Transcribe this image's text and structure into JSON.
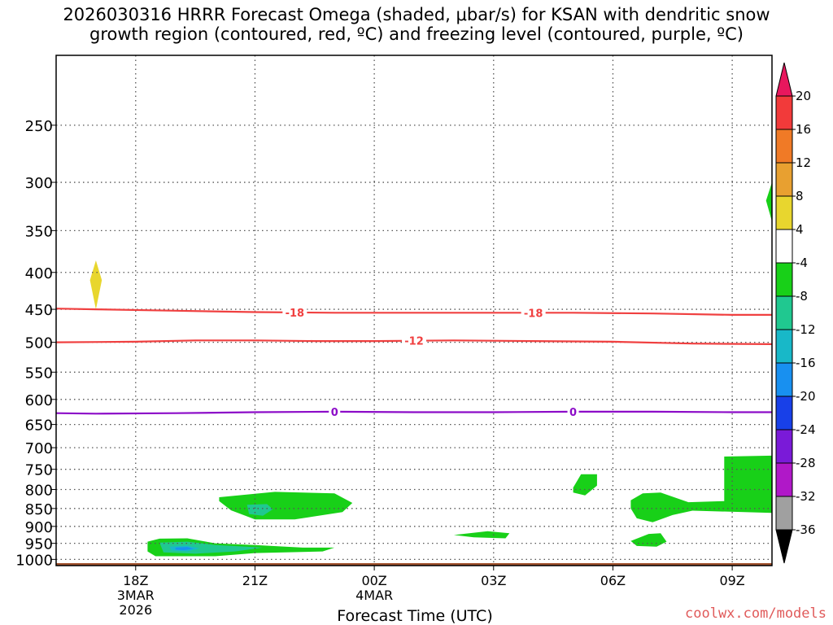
{
  "title_line1": "2026030316 HRRR Forecast Omega (shaded, μbar/s) for KSAN with dendritic snow",
  "title_line2": "growth region (contoured, red, ºC) and freezing level (contoured, purple, ºC)",
  "watermark": "coolwx.com/models",
  "chart_data": {
    "type": "heatmap",
    "xlabel": "Forecast Time (UTC)",
    "ylabel": "",
    "y_scale": "log",
    "ylim": [
      1020,
      200
    ],
    "xlim": [
      "2026-03-03 16Z",
      "2026-03-04 10Z"
    ],
    "y_ticks": [
      250,
      300,
      350,
      400,
      450,
      500,
      550,
      600,
      650,
      700,
      750,
      800,
      850,
      900,
      950,
      1000
    ],
    "x_ticks": [
      {
        "label": "18Z",
        "sub1": "3MAR",
        "sub2": "2026",
        "hour": 18
      },
      {
        "label": "21Z",
        "sub1": "",
        "sub2": "",
        "hour": 21
      },
      {
        "label": "00Z",
        "sub1": "4MAR",
        "sub2": "",
        "hour": 24
      },
      {
        "label": "03Z",
        "sub1": "",
        "sub2": "",
        "hour": 27
      },
      {
        "label": "06Z",
        "sub1": "",
        "sub2": "",
        "hour": 30
      },
      {
        "label": "09Z",
        "sub1": "",
        "sub2": "",
        "hour": 33
      }
    ],
    "grid": true,
    "colorbar": {
      "labels": [
        "20",
        "16",
        "12",
        "8",
        "4",
        "-4",
        "-8",
        "-12",
        "-16",
        "-20",
        "-24",
        "-28",
        "-32",
        "-36"
      ],
      "colors": [
        "#e8175d",
        "#f23a3a",
        "#f07a26",
        "#e8a030",
        "#e8d62e",
        "#ffffff",
        "#18d018",
        "#20c890",
        "#18b8c8",
        "#1890f0",
        "#1840e8",
        "#7a1ad8",
        "#b018c8",
        "#a0a0a0",
        "#000000"
      ]
    },
    "contours": [
      {
        "name": "-18",
        "color": "#f04040",
        "points": [
          [
            16.0,
            449
          ],
          [
            17.0,
            450
          ],
          [
            19.0,
            452
          ],
          [
            21.0,
            454
          ],
          [
            23.0,
            455
          ],
          [
            25.0,
            455
          ],
          [
            27.0,
            455
          ],
          [
            29.0,
            455
          ],
          [
            31.0,
            456
          ],
          [
            33.0,
            458
          ],
          [
            34.0,
            458
          ]
        ],
        "labels": [
          22.0,
          28.0
        ]
      },
      {
        "name": "-12",
        "color": "#f04040",
        "points": [
          [
            16.0,
            500
          ],
          [
            18.0,
            499
          ],
          [
            19.5,
            497
          ],
          [
            21.0,
            497
          ],
          [
            22.5,
            498
          ],
          [
            24.0,
            498
          ],
          [
            26.0,
            497
          ],
          [
            28.0,
            498
          ],
          [
            30.0,
            499
          ],
          [
            32.0,
            502
          ],
          [
            34.0,
            503
          ]
        ],
        "labels": [
          25.0
        ]
      },
      {
        "name": "0",
        "color": "#8c0cc8",
        "points": [
          [
            16.0,
            627
          ],
          [
            17.0,
            628
          ],
          [
            19.0,
            627
          ],
          [
            21.0,
            625
          ],
          [
            23.0,
            624
          ],
          [
            25.0,
            625
          ],
          [
            27.0,
            625
          ],
          [
            29.0,
            624
          ],
          [
            31.0,
            624
          ],
          [
            33.0,
            625
          ],
          [
            34.0,
            625
          ]
        ],
        "labels": [
          23.0,
          29.0
        ]
      }
    ],
    "regions": [
      {
        "color": "#e8d62e",
        "points": [
          [
            17.0,
            385
          ],
          [
            17.15,
            410
          ],
          [
            17.0,
            450
          ],
          [
            16.85,
            410
          ]
        ]
      },
      {
        "color": "#18d018",
        "points": [
          [
            34.0,
            300
          ],
          [
            33.85,
            318
          ],
          [
            34.0,
            340
          ]
        ]
      },
      {
        "color": "#18d018",
        "points": [
          [
            20.1,
            820
          ],
          [
            21.5,
            806
          ],
          [
            23.0,
            810
          ],
          [
            23.45,
            835
          ],
          [
            23.2,
            860
          ],
          [
            22.0,
            880
          ],
          [
            21.0,
            880
          ],
          [
            20.4,
            855
          ],
          [
            20.1,
            830
          ]
        ]
      },
      {
        "color": "#20c890",
        "points": [
          [
            20.8,
            840
          ],
          [
            21.3,
            838
          ],
          [
            21.45,
            852
          ],
          [
            21.2,
            870
          ],
          [
            20.85,
            865
          ]
        ]
      },
      {
        "color": "#18d018",
        "points": [
          [
            18.3,
            945
          ],
          [
            18.6,
            936
          ],
          [
            19.3,
            935
          ],
          [
            20.0,
            950
          ],
          [
            21.0,
            955
          ],
          [
            22.2,
            963
          ],
          [
            23.0,
            963
          ],
          [
            22.7,
            975
          ],
          [
            21.0,
            980
          ],
          [
            20.0,
            990
          ],
          [
            18.5,
            990
          ],
          [
            18.3,
            975
          ]
        ]
      },
      {
        "color": "#20c890",
        "points": [
          [
            18.6,
            948
          ],
          [
            19.3,
            945
          ],
          [
            20.0,
            955
          ],
          [
            21.2,
            963
          ],
          [
            20.5,
            975
          ],
          [
            19.5,
            982
          ],
          [
            18.7,
            978
          ]
        ]
      },
      {
        "color": "#18b8c8",
        "points": [
          [
            18.85,
            960
          ],
          [
            19.3,
            957
          ],
          [
            19.6,
            965
          ],
          [
            19.3,
            975
          ],
          [
            18.9,
            972
          ]
        ]
      },
      {
        "color": "#1890f0",
        "points": [
          [
            19.0,
            963
          ],
          [
            19.3,
            961
          ],
          [
            19.45,
            967
          ],
          [
            19.2,
            971
          ],
          [
            19.0,
            969
          ]
        ]
      },
      {
        "color": "#18d018",
        "points": [
          [
            26.0,
            925
          ],
          [
            26.85,
            914
          ],
          [
            27.4,
            920
          ],
          [
            27.3,
            935
          ],
          [
            26.5,
            932
          ]
        ]
      },
      {
        "color": "#18d018",
        "points": [
          [
            29.0,
            795
          ],
          [
            29.2,
            762
          ],
          [
            29.6,
            762
          ],
          [
            29.6,
            790
          ],
          [
            29.3,
            815
          ],
          [
            29.0,
            808
          ]
        ]
      },
      {
        "color": "#18d018",
        "points": [
          [
            30.45,
            828
          ],
          [
            30.75,
            810
          ],
          [
            31.2,
            808
          ],
          [
            31.9,
            833
          ],
          [
            32.8,
            830
          ],
          [
            32.8,
            720
          ],
          [
            34.0,
            718
          ],
          [
            34.0,
            862
          ],
          [
            32.0,
            856
          ],
          [
            31.5,
            868
          ],
          [
            31.0,
            888
          ],
          [
            30.6,
            877
          ],
          [
            30.45,
            850
          ]
        ]
      },
      {
        "color": "#18d018",
        "points": [
          [
            30.45,
            943
          ],
          [
            30.9,
            922
          ],
          [
            31.2,
            920
          ],
          [
            31.35,
            945
          ],
          [
            31.1,
            960
          ],
          [
            30.6,
            958
          ]
        ]
      }
    ]
  }
}
